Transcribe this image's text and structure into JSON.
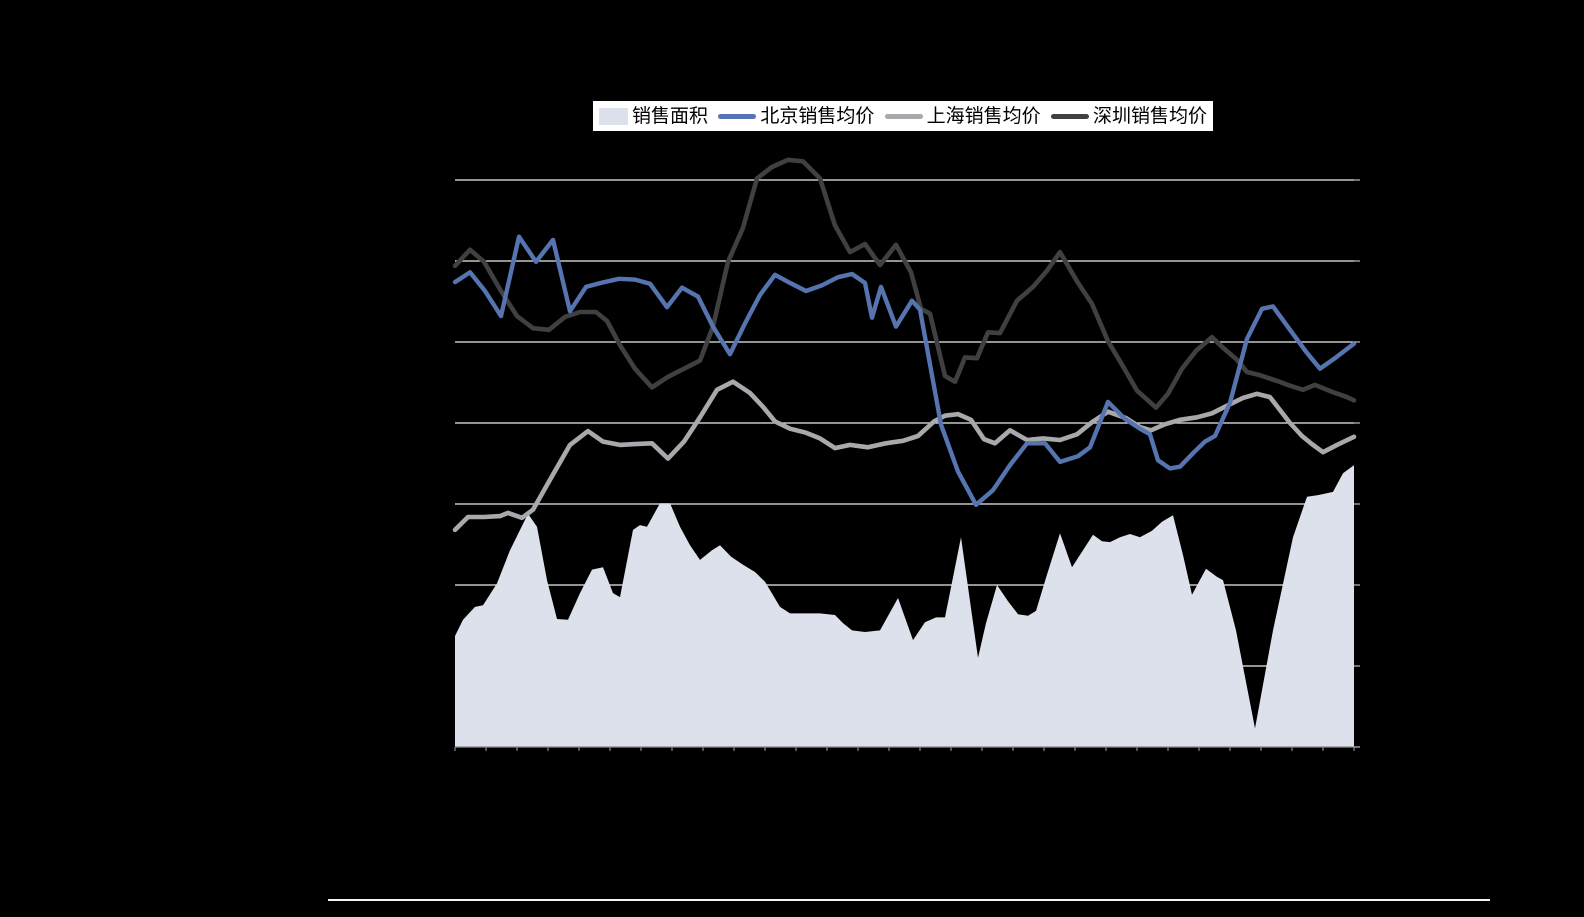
{
  "canvas": {
    "background": "#000000"
  },
  "legend": {
    "position": "top-center",
    "background": "#ffffff",
    "items": [
      {
        "label": "销售面积",
        "swatch": "area-swatch",
        "color": "#dde1ec"
      },
      {
        "label": "北京销售均价",
        "swatch": "line-swatch",
        "color": "#5574b0"
      },
      {
        "label": "上海销售均价",
        "swatch": "line-swatch",
        "color": "#a8a9ad"
      },
      {
        "label": "深圳销售均价",
        "swatch": "line-swatch",
        "color": "#404040"
      }
    ]
  },
  "chart_data": {
    "type": "area",
    "subtype": "combo-area-plus-lines",
    "title": "",
    "xlabel": "",
    "ylabel": "",
    "axis_labels_visible": false,
    "legend_position": "top-center",
    "grid": {
      "horizontal_gridlines": 7,
      "gridline_color": "#ededed",
      "axis_color": "#8a8a8a",
      "bottom_minor_ticks": 30
    },
    "scale_note": "y values in gridline units: bottom axis = 0, each gridline interval = 1, top gridline = 7; x in percent of plot width (axis tick labels are not visible in the image)",
    "ylim": [
      0,
      8
    ],
    "series": [
      {
        "name": "销售面积",
        "kind": "area",
        "color": "#dde1ec",
        "points": [
          [
            0,
            1.37
          ],
          [
            0.89,
            1.57
          ],
          [
            2.22,
            1.73
          ],
          [
            3.11,
            1.75
          ],
          [
            4.67,
            2.02
          ],
          [
            6.12,
            2.43
          ],
          [
            8.12,
            2.88
          ],
          [
            9.12,
            2.72
          ],
          [
            10.23,
            2.06
          ],
          [
            11.35,
            1.58
          ],
          [
            12.57,
            1.57
          ],
          [
            13.9,
            1.9
          ],
          [
            15.24,
            2.19
          ],
          [
            16.46,
            2.22
          ],
          [
            17.58,
            1.9
          ],
          [
            18.35,
            1.85
          ],
          [
            19.8,
            2.68
          ],
          [
            20.58,
            2.74
          ],
          [
            21.36,
            2.72
          ],
          [
            22.8,
            3.01
          ],
          [
            23.92,
            3.01
          ],
          [
            25.03,
            2.72
          ],
          [
            26.14,
            2.49
          ],
          [
            27.25,
            2.31
          ],
          [
            28.59,
            2.43
          ],
          [
            29.48,
            2.49
          ],
          [
            30.7,
            2.35
          ],
          [
            32.04,
            2.25
          ],
          [
            33.37,
            2.16
          ],
          [
            34.48,
            2.04
          ],
          [
            36.15,
            1.73
          ],
          [
            37.26,
            1.65
          ],
          [
            38.93,
            1.65
          ],
          [
            40.6,
            1.65
          ],
          [
            42.27,
            1.63
          ],
          [
            43.16,
            1.53
          ],
          [
            44.16,
            1.44
          ],
          [
            45.61,
            1.42
          ],
          [
            47.27,
            1.44
          ],
          [
            49.28,
            1.84
          ],
          [
            50.95,
            1.32
          ],
          [
            52.28,
            1.54
          ],
          [
            53.5,
            1.6
          ],
          [
            54.51,
            1.6
          ],
          [
            56.28,
            2.59
          ],
          [
            58.18,
            1.1
          ],
          [
            59.07,
            1.53
          ],
          [
            60.29,
            2
          ],
          [
            61.51,
            1.8
          ],
          [
            62.63,
            1.64
          ],
          [
            63.74,
            1.62
          ],
          [
            64.63,
            1.68
          ],
          [
            65.74,
            2.09
          ],
          [
            67.3,
            2.64
          ],
          [
            68.63,
            2.22
          ],
          [
            70.97,
            2.62
          ],
          [
            71.97,
            2.54
          ],
          [
            72.86,
            2.53
          ],
          [
            73.97,
            2.59
          ],
          [
            75.08,
            2.63
          ],
          [
            76.2,
            2.59
          ],
          [
            77.53,
            2.67
          ],
          [
            78.64,
            2.78
          ],
          [
            79.87,
            2.86
          ],
          [
            80.98,
            2.37
          ],
          [
            81.98,
            1.88
          ],
          [
            83.54,
            2.2
          ],
          [
            84.76,
            2.1
          ],
          [
            85.43,
            2.06
          ],
          [
            86.87,
            1.44
          ],
          [
            88.99,
            0.23
          ],
          [
            90.99,
            1.44
          ],
          [
            93.21,
            2.59
          ],
          [
            94.77,
            3.09
          ],
          [
            95.99,
            3.11
          ],
          [
            97.66,
            3.15
          ],
          [
            98.78,
            3.38
          ],
          [
            100,
            3.48
          ]
        ]
      },
      {
        "name": "上海销售均价",
        "kind": "line",
        "color": "#a8a9ad",
        "stroke_width": 4.6,
        "points": [
          [
            0,
            2.68
          ],
          [
            1.45,
            2.84
          ],
          [
            3.23,
            2.84
          ],
          [
            5.01,
            2.85
          ],
          [
            5.9,
            2.89
          ],
          [
            7.45,
            2.83
          ],
          [
            8.68,
            2.93
          ],
          [
            10.57,
            3.3
          ],
          [
            12.79,
            3.73
          ],
          [
            14.79,
            3.9
          ],
          [
            16.46,
            3.77
          ],
          [
            18.35,
            3.73
          ],
          [
            20.02,
            3.74
          ],
          [
            21.91,
            3.75
          ],
          [
            23.69,
            3.56
          ],
          [
            25.47,
            3.77
          ],
          [
            27.25,
            4.07
          ],
          [
            29.14,
            4.41
          ],
          [
            30.92,
            4.51
          ],
          [
            32.81,
            4.37
          ],
          [
            34.26,
            4.2
          ],
          [
            35.6,
            4.02
          ],
          [
            37.26,
            3.93
          ],
          [
            39.04,
            3.88
          ],
          [
            40.6,
            3.81
          ],
          [
            42.27,
            3.69
          ],
          [
            43.94,
            3.73
          ],
          [
            45.94,
            3.7
          ],
          [
            47.94,
            3.75
          ],
          [
            49.83,
            3.78
          ],
          [
            51.5,
            3.84
          ],
          [
            53.28,
            4.02
          ],
          [
            54.51,
            4.09
          ],
          [
            55.95,
            4.11
          ],
          [
            57.4,
            4.04
          ],
          [
            58.84,
            3.8
          ],
          [
            60.07,
            3.75
          ],
          [
            61.74,
            3.91
          ],
          [
            63.63,
            3.79
          ],
          [
            65.41,
            3.81
          ],
          [
            67.3,
            3.79
          ],
          [
            69.19,
            3.86
          ],
          [
            70.86,
            4.01
          ],
          [
            72.64,
            4.14
          ],
          [
            74.64,
            4.06
          ],
          [
            76.2,
            3.95
          ],
          [
            77.42,
            3.91
          ],
          [
            78.87,
            3.98
          ],
          [
            80.65,
            4.04
          ],
          [
            82.54,
            4.07
          ],
          [
            84.2,
            4.12
          ],
          [
            85.98,
            4.22
          ],
          [
            87.65,
            4.31
          ],
          [
            89.21,
            4.36
          ],
          [
            90.66,
            4.32
          ],
          [
            92.88,
            4
          ],
          [
            94.22,
            3.84
          ],
          [
            95.33,
            3.74
          ],
          [
            96.55,
            3.64
          ],
          [
            98.11,
            3.73
          ],
          [
            100,
            3.83
          ]
        ]
      },
      {
        "name": "深圳销售均价",
        "kind": "line",
        "color": "#404040",
        "stroke_width": 4.6,
        "points": [
          [
            0,
            5.94
          ],
          [
            1.67,
            6.14
          ],
          [
            3.23,
            5.99
          ],
          [
            5.12,
            5.63
          ],
          [
            6.9,
            5.32
          ],
          [
            8.68,
            5.17
          ],
          [
            10.46,
            5.15
          ],
          [
            12.24,
            5.31
          ],
          [
            13.9,
            5.37
          ],
          [
            15.68,
            5.37
          ],
          [
            16.91,
            5.26
          ],
          [
            18.35,
            4.96
          ],
          [
            20.02,
            4.67
          ],
          [
            21.91,
            4.44
          ],
          [
            23.69,
            4.57
          ],
          [
            25.47,
            4.67
          ],
          [
            27.25,
            4.77
          ],
          [
            28.7,
            5.19
          ],
          [
            30.37,
            5.99
          ],
          [
            32.04,
            6.41
          ],
          [
            33.59,
            7.02
          ],
          [
            35.26,
            7.16
          ],
          [
            37.04,
            7.25
          ],
          [
            38.71,
            7.23
          ],
          [
            40.6,
            7.02
          ],
          [
            42.27,
            6.44
          ],
          [
            43.94,
            6.11
          ],
          [
            45.61,
            6.21
          ],
          [
            47.27,
            5.95
          ],
          [
            49.05,
            6.2
          ],
          [
            50.72,
            5.86
          ],
          [
            51.84,
            5.41
          ],
          [
            52.84,
            5.35
          ],
          [
            54.51,
            4.58
          ],
          [
            55.62,
            4.51
          ],
          [
            56.73,
            4.81
          ],
          [
            58.06,
            4.8
          ],
          [
            59.29,
            5.12
          ],
          [
            60.62,
            5.11
          ],
          [
            62.51,
            5.51
          ],
          [
            64.29,
            5.68
          ],
          [
            65.85,
            5.88
          ],
          [
            67.3,
            6.11
          ],
          [
            69.19,
            5.75
          ],
          [
            70.86,
            5.47
          ],
          [
            72.64,
            5.01
          ],
          [
            74.19,
            4.72
          ],
          [
            75.86,
            4.4
          ],
          [
            77.98,
            4.19
          ],
          [
            79.31,
            4.36
          ],
          [
            80.87,
            4.67
          ],
          [
            82.43,
            4.89
          ],
          [
            84.2,
            5.06
          ],
          [
            85.32,
            4.94
          ],
          [
            86.99,
            4.78
          ],
          [
            88.1,
            4.63
          ],
          [
            89.54,
            4.59
          ],
          [
            91.43,
            4.52
          ],
          [
            92.88,
            4.46
          ],
          [
            94.33,
            4.41
          ],
          [
            95.66,
            4.47
          ],
          [
            97.66,
            4.38
          ],
          [
            99.22,
            4.32
          ],
          [
            100,
            4.28
          ]
        ]
      },
      {
        "name": "北京销售均价",
        "kind": "line",
        "color": "#5574b0",
        "stroke_width": 4.4,
        "points": [
          [
            0,
            5.74
          ],
          [
            1.67,
            5.86
          ],
          [
            3.34,
            5.63
          ],
          [
            5.12,
            5.32
          ],
          [
            7.12,
            6.3
          ],
          [
            9.01,
            5.99
          ],
          [
            10.9,
            6.26
          ],
          [
            12.79,
            5.38
          ],
          [
            14.57,
            5.68
          ],
          [
            16.24,
            5.73
          ],
          [
            18.24,
            5.78
          ],
          [
            20.02,
            5.77
          ],
          [
            21.69,
            5.72
          ],
          [
            23.58,
            5.43
          ],
          [
            25.25,
            5.67
          ],
          [
            27.03,
            5.56
          ],
          [
            28.7,
            5.19
          ],
          [
            30.59,
            4.85
          ],
          [
            32.26,
            5.23
          ],
          [
            33.93,
            5.58
          ],
          [
            35.6,
            5.83
          ],
          [
            37.26,
            5.73
          ],
          [
            39.04,
            5.63
          ],
          [
            40.82,
            5.7
          ],
          [
            42.6,
            5.8
          ],
          [
            44.16,
            5.84
          ],
          [
            45.61,
            5.73
          ],
          [
            46.39,
            5.3
          ],
          [
            47.39,
            5.68
          ],
          [
            49.05,
            5.19
          ],
          [
            50.83,
            5.51
          ],
          [
            51.72,
            5.4
          ],
          [
            54.06,
            3.98
          ],
          [
            55.95,
            3.4
          ],
          [
            57.95,
            2.99
          ],
          [
            59.84,
            3.17
          ],
          [
            61.74,
            3.48
          ],
          [
            63.63,
            3.75
          ],
          [
            65.63,
            3.75
          ],
          [
            67.3,
            3.52
          ],
          [
            69.3,
            3.59
          ],
          [
            70.63,
            3.7
          ],
          [
            72.64,
            4.26
          ],
          [
            74.53,
            4.05
          ],
          [
            76.2,
            3.93
          ],
          [
            77.31,
            3.86
          ],
          [
            78.2,
            3.54
          ],
          [
            79.53,
            3.44
          ],
          [
            80.65,
            3.46
          ],
          [
            82.2,
            3.64
          ],
          [
            83.43,
            3.77
          ],
          [
            84.54,
            3.84
          ],
          [
            86.21,
            4.25
          ],
          [
            88.1,
            5.04
          ],
          [
            89.77,
            5.41
          ],
          [
            90.99,
            5.44
          ],
          [
            92.88,
            5.15
          ],
          [
            94.66,
            4.88
          ],
          [
            96.22,
            4.67
          ],
          [
            98,
            4.81
          ],
          [
            100,
            4.98
          ]
        ]
      }
    ]
  },
  "footer": {
    "divider_color": "#f4f4f4"
  }
}
